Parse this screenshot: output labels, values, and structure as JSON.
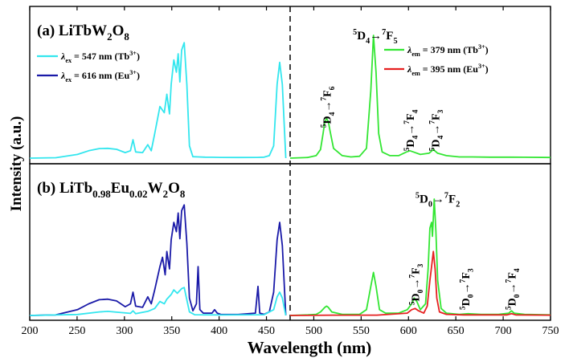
{
  "chart_data": {
    "type": "line",
    "xlabel": "Wavelength (nm)",
    "ylabel": "Intensity (a.u.)",
    "x_break": 500,
    "xlim_left": [
      200,
      500
    ],
    "xlim_right": [
      450,
      750
    ],
    "x_ticks": [
      200,
      250,
      300,
      350,
      400,
      450,
      500,
      550,
      600,
      650,
      700,
      750
    ],
    "x_tick_labels": [
      "200",
      "250",
      "300",
      "350",
      "400",
      "450",
      "500",
      "550",
      "600",
      "650",
      "700",
      "750"
    ],
    "colors": {
      "cyan": "#33e6ee",
      "navy": "#1a1aa8",
      "green": "#33e633",
      "red": "#e62020"
    },
    "panels": [
      {
        "title_parts": [
          {
            "t": "(a) LiTbW",
            "s": ""
          },
          {
            "t": "2",
            "s": "sub"
          },
          {
            "t": "O",
            "s": ""
          },
          {
            "t": "8",
            "s": "sub"
          }
        ],
        "legend_left": [
          {
            "color": "#33e6ee",
            "parts": [
              {
                "t": "λ",
                "s": "it"
              },
              {
                "t": "ex",
                "s": "sub"
              },
              {
                "t": " = 547 nm (Tb",
                "s": ""
              },
              {
                "t": "3+",
                "s": "sup"
              },
              {
                "t": ")",
                "s": ""
              }
            ]
          },
          {
            "color": "#1a1aa8",
            "parts": [
              {
                "t": "λ",
                "s": "it"
              },
              {
                "t": "ex",
                "s": "sub"
              },
              {
                "t": " = 616 nm (Eu",
                "s": ""
              },
              {
                "t": "3+",
                "s": "sup"
              },
              {
                "t": ")",
                "s": ""
              }
            ]
          }
        ],
        "legend_right": [
          {
            "color": "#33e633",
            "parts": [
              {
                "t": "λ",
                "s": "it"
              },
              {
                "t": "em",
                "s": "sub"
              },
              {
                "t": " = 379 nm (Tb",
                "s": ""
              },
              {
                "t": "3+",
                "s": "sup"
              },
              {
                "t": ")",
                "s": ""
              }
            ]
          },
          {
            "color": "#e62020",
            "parts": [
              {
                "t": "λ",
                "s": "it"
              },
              {
                "t": "em",
                "s": "sub"
              },
              {
                "t": " = 395 nm (Eu",
                "s": ""
              },
              {
                "t": "3+",
                "s": "sup"
              },
              {
                "t": ")",
                "s": ""
              }
            ]
          }
        ],
        "annotations": [
          {
            "x": 548,
            "y": 0.94,
            "rotate": 0,
            "parts": [
              {
                "t": "5",
                "s": "sup"
              },
              {
                "t": "D",
                "s": ""
              },
              {
                "t": "4",
                "s": "sub"
              },
              {
                "t": "→",
                "s": ""
              },
              {
                "t": "7",
                "s": "sup"
              },
              {
                "t": "F",
                "s": ""
              },
              {
                "t": "5",
                "s": "sub"
              }
            ]
          },
          {
            "x": 492,
            "y": 0.22,
            "rotate": -90,
            "parts": [
              {
                "t": "5",
                "s": "sup"
              },
              {
                "t": "D",
                "s": ""
              },
              {
                "t": "4",
                "s": "sub"
              },
              {
                "t": "→",
                "s": ""
              },
              {
                "t": "7",
                "s": "sup"
              },
              {
                "t": "F",
                "s": ""
              },
              {
                "t": "6",
                "s": "sub"
              }
            ]
          },
          {
            "x": 588,
            "y": 0.03,
            "rotate": -90,
            "parts": [
              {
                "t": "5",
                "s": "sup"
              },
              {
                "t": "D",
                "s": ""
              },
              {
                "t": "4",
                "s": "sub"
              },
              {
                "t": "→",
                "s": ""
              },
              {
                "t": "7",
                "s": "sup"
              },
              {
                "t": "F",
                "s": ""
              },
              {
                "t": "4",
                "s": "sub"
              }
            ]
          },
          {
            "x": 617,
            "y": 0.03,
            "rotate": -90,
            "parts": [
              {
                "t": "5",
                "s": "sup"
              },
              {
                "t": "D",
                "s": ""
              },
              {
                "t": "4",
                "s": "sub"
              },
              {
                "t": "→",
                "s": ""
              },
              {
                "t": "7",
                "s": "sup"
              },
              {
                "t": "F",
                "s": ""
              },
              {
                "t": "3",
                "s": "sub"
              }
            ]
          }
        ],
        "series": [
          {
            "side": "left",
            "color": "#33e6ee",
            "x": [
              200,
              230,
              255,
              268,
              280,
              290,
              300,
              310,
              316,
              319,
              322,
              330,
              336,
              340,
              344,
              350,
              355,
              358,
              361,
              363,
              366,
              369,
              371,
              373,
              375,
              378,
              381,
              384,
              388,
              395,
              402,
              410,
              420,
              440,
              462,
              470,
              476,
              481,
              485,
              488,
              491,
              495
            ],
            "y": [
              0.0,
              0.003,
              0.03,
              0.06,
              0.078,
              0.08,
              0.072,
              0.045,
              0.06,
              0.15,
              0.05,
              0.045,
              0.11,
              0.06,
              0.2,
              0.42,
              0.37,
              0.52,
              0.36,
              0.6,
              0.8,
              0.7,
              0.85,
              0.62,
              0.88,
              0.94,
              0.6,
              0.1,
              0.012,
              0.01,
              0.008,
              0.007,
              0.006,
              0.005,
              0.006,
              0.008,
              0.02,
              0.1,
              0.6,
              0.78,
              0.6,
              0.0
            ]
          },
          {
            "side": "right",
            "color": "#33e633",
            "x": [
              450,
              470,
              480,
              485,
              488,
              490,
              492,
              494,
              496,
              500,
              510,
              520,
              530,
              538,
              543,
              546,
              549,
              552,
              556,
              565,
              575,
              584,
              588,
              592,
              600,
              610,
              615,
              620,
              630,
              645,
              660,
              680,
              700,
              720,
              750
            ],
            "y": [
              0.0,
              0.005,
              0.02,
              0.07,
              0.2,
              0.3,
              0.32,
              0.3,
              0.22,
              0.08,
              0.02,
              0.01,
              0.015,
              0.08,
              0.55,
              1.0,
              0.7,
              0.2,
              0.05,
              0.02,
              0.02,
              0.05,
              0.06,
              0.05,
              0.03,
              0.04,
              0.07,
              0.04,
              0.02,
              0.01,
              0.01,
              0.008,
              0.008,
              0.007,
              0.005
            ]
          }
        ]
      },
      {
        "title_parts": [
          {
            "t": "(b) LiTb",
            "s": ""
          },
          {
            "t": "0.98",
            "s": "sub"
          },
          {
            "t": "Eu",
            "s": ""
          },
          {
            "t": "0.02",
            "s": "sub"
          },
          {
            "t": "W",
            "s": ""
          },
          {
            "t": "2",
            "s": "sub"
          },
          {
            "t": "O",
            "s": ""
          },
          {
            "t": "8",
            "s": "sub"
          }
        ],
        "legend_left": [],
        "legend_right": [],
        "annotations": [
          {
            "x": 620,
            "y": 0.94,
            "rotate": 0,
            "parts": [
              {
                "t": "5",
                "s": "sup"
              },
              {
                "t": "D",
                "s": ""
              },
              {
                "t": "0",
                "s": "sub"
              },
              {
                "t": "→",
                "s": ""
              },
              {
                "t": "7",
                "s": "sup"
              },
              {
                "t": "F",
                "s": ""
              },
              {
                "t": "2",
                "s": "sub"
              }
            ]
          },
          {
            "x": 594,
            "y": 0.06,
            "rotate": -90,
            "parts": [
              {
                "t": "5",
                "s": "sup"
              },
              {
                "t": "D",
                "s": ""
              },
              {
                "t": "0",
                "s": "sub"
              },
              {
                "t": "→",
                "s": ""
              },
              {
                "t": "7",
                "s": "sup"
              },
              {
                "t": "F",
                "s": ""
              },
              {
                "t": "3",
                "s": "sub"
              }
            ]
          },
          {
            "x": 652,
            "y": 0.02,
            "rotate": -90,
            "parts": [
              {
                "t": "5",
                "s": "sup"
              },
              {
                "t": "D",
                "s": ""
              },
              {
                "t": "0",
                "s": "sub"
              },
              {
                "t": "→",
                "s": ""
              },
              {
                "t": "7",
                "s": "sup"
              },
              {
                "t": "F",
                "s": ""
              },
              {
                "t": "3",
                "s": "sub"
              }
            ]
          },
          {
            "x": 705,
            "y": 0.02,
            "rotate": -90,
            "parts": [
              {
                "t": "5",
                "s": "sup"
              },
              {
                "t": "D",
                "s": ""
              },
              {
                "t": "0",
                "s": "sub"
              },
              {
                "t": "→",
                "s": ""
              },
              {
                "t": "7",
                "s": "sup"
              },
              {
                "t": "F",
                "s": ""
              },
              {
                "t": "4",
                "s": "sub"
              }
            ]
          }
        ],
        "series": [
          {
            "side": "left",
            "color": "#1a1aa8",
            "x": [
              200,
              230,
              255,
              268,
              280,
              290,
              300,
              310,
              316,
              319,
              322,
              330,
              336,
              340,
              344,
              350,
              353,
              356,
              358,
              361,
              363,
              366,
              369,
              371,
              373,
              375,
              378,
              381,
              384,
              388,
              392,
              394,
              396,
              400,
              410,
              413,
              416,
              420,
              440,
              460,
              463,
              465,
              470,
              476,
              481,
              485,
              488,
              491,
              495
            ],
            "y": [
              0.0,
              0.005,
              0.05,
              0.1,
              0.135,
              0.14,
              0.125,
              0.075,
              0.1,
              0.2,
              0.08,
              0.07,
              0.16,
              0.1,
              0.22,
              0.42,
              0.5,
              0.35,
              0.55,
              0.4,
              0.65,
              0.8,
              0.72,
              0.88,
              0.66,
              0.9,
              0.95,
              0.62,
              0.15,
              0.04,
              0.1,
              0.42,
              0.05,
              0.02,
              0.02,
              0.05,
              0.02,
              0.01,
              0.008,
              0.02,
              0.25,
              0.02,
              0.01,
              0.03,
              0.2,
              0.65,
              0.8,
              0.6,
              0.0
            ]
          },
          {
            "side": "left",
            "color": "#33e6ee",
            "x": [
              200,
              255,
              280,
              290,
              300,
              316,
              319,
              322,
              336,
              344,
              350,
              355,
              358,
              363,
              366,
              370,
              375,
              378,
              384,
              390,
              420,
              470,
              481,
              485,
              488,
              491,
              495
            ],
            "y": [
              0.0,
              0.008,
              0.03,
              0.035,
              0.028,
              0.018,
              0.04,
              0.015,
              0.035,
              0.06,
              0.12,
              0.1,
              0.14,
              0.18,
              0.22,
              0.19,
              0.23,
              0.24,
              0.03,
              0.006,
              0.004,
              0.006,
              0.05,
              0.16,
              0.2,
              0.15,
              0.0
            ]
          },
          {
            "side": "right",
            "color": "#33e633",
            "x": [
              450,
              470,
              480,
              485,
              490,
              492,
              494,
              498,
              510,
              530,
              538,
              543,
              546,
              549,
              553,
              560,
              575,
              585,
              590,
              593,
              596,
              600,
              606,
              609,
              611,
              613,
              614,
              616,
              618,
              620,
              624,
              630,
              645,
              655,
              670,
              690,
              702,
              705,
              708,
              720,
              750
            ],
            "y": [
              0.0,
              0.005,
              0.01,
              0.03,
              0.07,
              0.08,
              0.07,
              0.03,
              0.01,
              0.01,
              0.05,
              0.25,
              0.37,
              0.25,
              0.05,
              0.02,
              0.02,
              0.05,
              0.1,
              0.15,
              0.12,
              0.05,
              0.1,
              0.4,
              0.75,
              0.8,
              0.68,
              1.0,
              0.72,
              0.3,
              0.06,
              0.02,
              0.01,
              0.015,
              0.01,
              0.01,
              0.02,
              0.04,
              0.02,
              0.01,
              0.005
            ]
          },
          {
            "side": "right",
            "color": "#e62020",
            "x": [
              450,
              500,
              550,
              585,
              590,
              594,
              598,
              604,
              608,
              611,
              613,
              615,
              617,
              619,
              622,
              630,
              650,
              700,
              705,
              710,
              750
            ],
            "y": [
              0.0,
              0.003,
              0.003,
              0.02,
              0.05,
              0.06,
              0.04,
              0.02,
              0.08,
              0.3,
              0.42,
              0.55,
              0.4,
              0.15,
              0.03,
              0.01,
              0.005,
              0.005,
              0.015,
              0.005,
              0.003
            ]
          }
        ]
      }
    ]
  }
}
